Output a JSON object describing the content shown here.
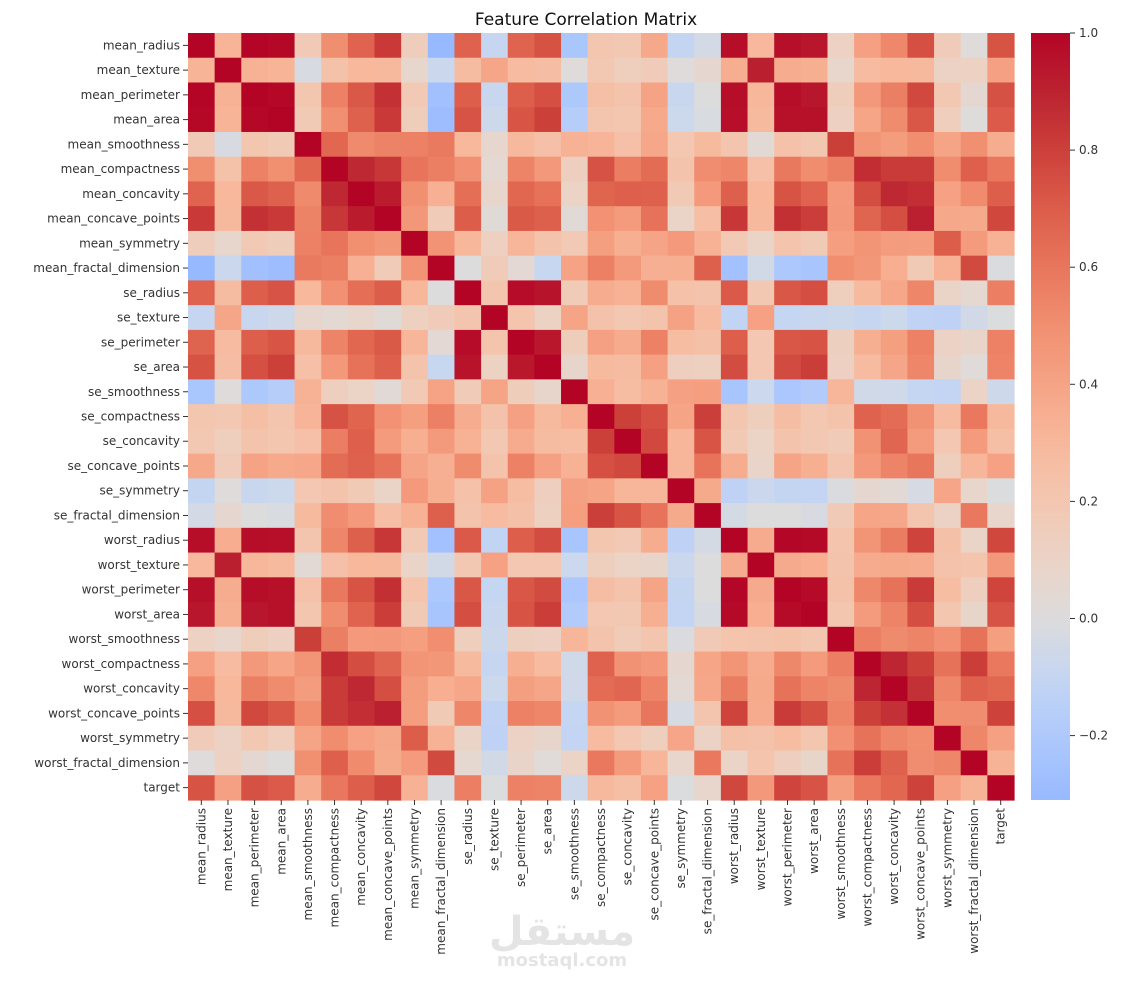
{
  "chart_data": {
    "type": "heatmap",
    "title": "Feature Correlation Matrix",
    "labels": [
      "mean_radius",
      "mean_texture",
      "mean_perimeter",
      "mean_area",
      "mean_smoothness",
      "mean_compactness",
      "mean_concavity",
      "mean_concave_points",
      "mean_symmetry",
      "mean_fractal_dimension",
      "se_radius",
      "se_texture",
      "se_perimeter",
      "se_area",
      "se_smoothness",
      "se_compactness",
      "se_concavity",
      "se_concave_points",
      "se_symmetry",
      "se_fractal_dimension",
      "worst_radius",
      "worst_texture",
      "worst_perimeter",
      "worst_area",
      "worst_smoothness",
      "worst_compactness",
      "worst_concavity",
      "worst_concave_points",
      "worst_symmetry",
      "worst_fractal_dimension",
      "target"
    ],
    "matrix": [
      [
        1,
        0.32,
        0.998,
        0.987,
        0.171,
        0.506,
        0.677,
        0.823,
        0.148,
        -0.312,
        0.679,
        -0.097,
        0.674,
        0.736,
        -0.223,
        0.206,
        0.194,
        0.376,
        -0.104,
        -0.043,
        0.97,
        0.297,
        0.965,
        0.941,
        0.12,
        0.413,
        0.527,
        0.744,
        0.164,
        0.007,
        0.73
      ],
      [
        0.32,
        1,
        0.33,
        0.321,
        -0.023,
        0.237,
        0.302,
        0.293,
        0.071,
        -0.076,
        0.276,
        0.386,
        0.282,
        0.26,
        0.007,
        0.192,
        0.143,
        0.164,
        0.009,
        0.054,
        0.353,
        0.912,
        0.358,
        0.344,
        0.078,
        0.278,
        0.301,
        0.295,
        0.105,
        0.119,
        0.415
      ],
      [
        0.998,
        0.33,
        1,
        0.987,
        0.207,
        0.557,
        0.716,
        0.851,
        0.183,
        -0.261,
        0.692,
        -0.087,
        0.693,
        0.745,
        -0.203,
        0.251,
        0.228,
        0.407,
        -0.082,
        -0.006,
        0.969,
        0.303,
        0.97,
        0.942,
        0.151,
        0.456,
        0.564,
        0.771,
        0.189,
        0.051,
        0.743
      ],
      [
        0.987,
        0.321,
        0.987,
        1,
        0.177,
        0.499,
        0.686,
        0.823,
        0.151,
        -0.283,
        0.733,
        -0.066,
        0.727,
        0.8,
        -0.167,
        0.213,
        0.208,
        0.372,
        -0.072,
        -0.02,
        0.963,
        0.287,
        0.959,
        0.959,
        0.124,
        0.391,
        0.513,
        0.722,
        0.144,
        0.004,
        0.709
      ],
      [
        0.171,
        -0.023,
        0.207,
        0.177,
        1,
        0.659,
        0.522,
        0.554,
        0.558,
        0.585,
        0.301,
        0.068,
        0.296,
        0.246,
        0.332,
        0.319,
        0.248,
        0.381,
        0.201,
        0.284,
        0.213,
        0.036,
        0.239,
        0.207,
        0.805,
        0.473,
        0.435,
        0.503,
        0.394,
        0.499,
        0.359
      ],
      [
        0.506,
        0.237,
        0.557,
        0.499,
        0.659,
        1,
        0.883,
        0.831,
        0.603,
        0.565,
        0.497,
        0.046,
        0.549,
        0.456,
        0.135,
        0.739,
        0.571,
        0.642,
        0.23,
        0.507,
        0.535,
        0.248,
        0.59,
        0.51,
        0.566,
        0.866,
        0.816,
        0.816,
        0.51,
        0.687,
        0.597
      ],
      [
        0.677,
        0.302,
        0.716,
        0.686,
        0.522,
        0.883,
        1,
        0.921,
        0.501,
        0.337,
        0.632,
        0.076,
        0.66,
        0.617,
        0.099,
        0.67,
        0.691,
        0.683,
        0.178,
        0.449,
        0.688,
        0.3,
        0.73,
        0.676,
        0.449,
        0.755,
        0.884,
        0.861,
        0.409,
        0.515,
        0.696
      ],
      [
        0.823,
        0.293,
        0.851,
        0.823,
        0.554,
        0.831,
        0.921,
        1,
        0.462,
        0.167,
        0.698,
        0.021,
        0.711,
        0.69,
        0.028,
        0.49,
        0.439,
        0.616,
        0.095,
        0.258,
        0.83,
        0.293,
        0.856,
        0.81,
        0.453,
        0.667,
        0.752,
        0.91,
        0.376,
        0.369,
        0.777
      ],
      [
        0.148,
        0.071,
        0.183,
        0.151,
        0.558,
        0.603,
        0.501,
        0.462,
        1,
        0.48,
        0.303,
        0.128,
        0.314,
        0.224,
        0.187,
        0.422,
        0.343,
        0.393,
        0.449,
        0.332,
        0.186,
        0.091,
        0.219,
        0.177,
        0.427,
        0.473,
        0.434,
        0.43,
        0.7,
        0.438,
        0.33
      ],
      [
        -0.312,
        -0.076,
        -0.261,
        -0.283,
        0.585,
        0.565,
        0.337,
        0.167,
        0.48,
        1,
        0.0,
        0.164,
        0.04,
        -0.09,
        0.402,
        0.56,
        0.447,
        0.341,
        0.345,
        0.688,
        -0.254,
        -0.051,
        -0.205,
        -0.232,
        0.505,
        0.459,
        0.346,
        0.175,
        0.334,
        0.767,
        -0.013
      ],
      [
        0.679,
        0.276,
        0.692,
        0.733,
        0.301,
        0.497,
        0.632,
        0.698,
        0.303,
        0.0,
        1,
        0.213,
        0.973,
        0.952,
        0.165,
        0.356,
        0.332,
        0.514,
        0.241,
        0.228,
        0.715,
        0.195,
        0.72,
        0.752,
        0.142,
        0.287,
        0.381,
        0.531,
        0.095,
        0.05,
        0.567
      ],
      [
        -0.097,
        0.386,
        -0.087,
        -0.066,
        0.068,
        0.046,
        0.076,
        0.021,
        0.128,
        0.164,
        0.213,
        1,
        0.223,
        0.112,
        0.397,
        0.232,
        0.195,
        0.23,
        0.412,
        0.28,
        -0.112,
        0.409,
        -0.102,
        -0.083,
        -0.074,
        -0.092,
        -0.069,
        -0.12,
        -0.128,
        -0.046,
        -0.008
      ],
      [
        0.674,
        0.282,
        0.693,
        0.727,
        0.296,
        0.549,
        0.66,
        0.711,
        0.314,
        0.04,
        0.973,
        0.223,
        1,
        0.938,
        0.151,
        0.416,
        0.362,
        0.556,
        0.266,
        0.244,
        0.697,
        0.2,
        0.721,
        0.731,
        0.13,
        0.342,
        0.419,
        0.555,
        0.11,
        0.085,
        0.556
      ],
      [
        0.736,
        0.26,
        0.745,
        0.8,
        0.246,
        0.456,
        0.617,
        0.69,
        0.224,
        -0.09,
        0.952,
        0.112,
        0.938,
        1,
        0.075,
        0.285,
        0.271,
        0.416,
        0.134,
        0.127,
        0.757,
        0.196,
        0.761,
        0.811,
        0.125,
        0.283,
        0.385,
        0.538,
        0.074,
        0.018,
        0.548
      ],
      [
        -0.223,
        0.007,
        -0.203,
        -0.167,
        0.332,
        0.135,
        0.099,
        0.028,
        0.187,
        0.402,
        0.165,
        0.397,
        0.151,
        0.075,
        1,
        0.337,
        0.269,
        0.329,
        0.414,
        0.427,
        -0.231,
        -0.075,
        -0.217,
        -0.182,
        0.314,
        -0.056,
        -0.058,
        -0.102,
        -0.107,
        0.101,
        -0.067
      ],
      [
        0.206,
        0.192,
        0.251,
        0.213,
        0.319,
        0.739,
        0.67,
        0.49,
        0.422,
        0.56,
        0.356,
        0.232,
        0.416,
        0.285,
        0.337,
        1,
        0.801,
        0.744,
        0.395,
        0.803,
        0.205,
        0.143,
        0.261,
        0.199,
        0.227,
        0.679,
        0.639,
        0.483,
        0.278,
        0.591,
        0.293
      ],
      [
        0.194,
        0.143,
        0.228,
        0.208,
        0.248,
        0.571,
        0.691,
        0.439,
        0.343,
        0.447,
        0.332,
        0.195,
        0.362,
        0.271,
        0.269,
        0.801,
        1,
        0.772,
        0.309,
        0.727,
        0.187,
        0.1,
        0.227,
        0.189,
        0.168,
        0.485,
        0.663,
        0.44,
        0.198,
        0.439,
        0.254
      ],
      [
        0.376,
        0.164,
        0.407,
        0.372,
        0.381,
        0.642,
        0.683,
        0.616,
        0.393,
        0.341,
        0.514,
        0.23,
        0.556,
        0.416,
        0.329,
        0.744,
        0.772,
        1,
        0.313,
        0.611,
        0.358,
        0.087,
        0.395,
        0.342,
        0.215,
        0.453,
        0.55,
        0.602,
        0.143,
        0.311,
        0.408
      ],
      [
        -0.104,
        0.009,
        -0.082,
        -0.072,
        0.201,
        0.23,
        0.178,
        0.095,
        0.449,
        0.345,
        0.241,
        0.412,
        0.266,
        0.134,
        0.414,
        0.395,
        0.309,
        0.313,
        1,
        0.369,
        -0.128,
        -0.077,
        -0.104,
        -0.11,
        -0.013,
        0.06,
        0.037,
        -0.03,
        0.389,
        0.078,
        -0.007
      ],
      [
        -0.043,
        0.054,
        -0.006,
        -0.02,
        0.284,
        0.507,
        0.449,
        0.258,
        0.332,
        0.688,
        0.228,
        0.28,
        0.244,
        0.127,
        0.427,
        0.803,
        0.727,
        0.611,
        0.369,
        1,
        -0.037,
        -0.003,
        -0.001,
        -0.023,
        0.171,
        0.39,
        0.38,
        0.215,
        0.111,
        0.591,
        0.078
      ],
      [
        0.97,
        0.353,
        0.969,
        0.963,
        0.213,
        0.535,
        0.688,
        0.83,
        0.186,
        -0.254,
        0.715,
        -0.112,
        0.697,
        0.757,
        -0.231,
        0.205,
        0.187,
        0.358,
        -0.128,
        -0.037,
        1,
        0.36,
        0.994,
        0.984,
        0.217,
        0.476,
        0.574,
        0.787,
        0.244,
        0.093,
        0.776
      ],
      [
        0.297,
        0.912,
        0.303,
        0.287,
        0.036,
        0.248,
        0.3,
        0.293,
        0.091,
        -0.051,
        0.195,
        0.409,
        0.2,
        0.196,
        -0.075,
        0.143,
        0.1,
        0.087,
        -0.077,
        -0.003,
        0.36,
        1,
        0.365,
        0.346,
        0.225,
        0.361,
        0.368,
        0.36,
        0.233,
        0.219,
        0.457
      ],
      [
        0.965,
        0.358,
        0.97,
        0.959,
        0.239,
        0.59,
        0.73,
        0.856,
        0.219,
        -0.205,
        0.72,
        -0.102,
        0.721,
        0.761,
        -0.217,
        0.261,
        0.227,
        0.395,
        -0.104,
        -0.001,
        0.994,
        0.365,
        1,
        0.978,
        0.237,
        0.529,
        0.618,
        0.816,
        0.269,
        0.139,
        0.783
      ],
      [
        0.941,
        0.344,
        0.942,
        0.959,
        0.207,
        0.51,
        0.676,
        0.81,
        0.177,
        -0.232,
        0.752,
        -0.083,
        0.731,
        0.811,
        -0.182,
        0.199,
        0.189,
        0.342,
        -0.11,
        -0.023,
        0.984,
        0.346,
        0.978,
        1,
        0.209,
        0.438,
        0.543,
        0.747,
        0.209,
        0.08,
        0.734
      ],
      [
        0.12,
        0.078,
        0.151,
        0.124,
        0.805,
        0.566,
        0.449,
        0.453,
        0.427,
        0.505,
        0.142,
        -0.074,
        0.13,
        0.125,
        0.314,
        0.227,
        0.168,
        0.215,
        -0.013,
        0.171,
        0.217,
        0.225,
        0.237,
        0.209,
        1,
        0.568,
        0.518,
        0.548,
        0.494,
        0.618,
        0.421
      ],
      [
        0.413,
        0.278,
        0.456,
        0.391,
        0.473,
        0.866,
        0.755,
        0.667,
        0.473,
        0.459,
        0.287,
        -0.092,
        0.342,
        0.283,
        -0.056,
        0.679,
        0.485,
        0.453,
        0.06,
        0.39,
        0.476,
        0.361,
        0.529,
        0.438,
        0.568,
        1,
        0.892,
        0.801,
        0.614,
        0.81,
        0.591
      ],
      [
        0.527,
        0.301,
        0.564,
        0.513,
        0.435,
        0.816,
        0.884,
        0.752,
        0.434,
        0.346,
        0.381,
        -0.069,
        0.419,
        0.385,
        -0.058,
        0.639,
        0.663,
        0.55,
        0.037,
        0.38,
        0.574,
        0.368,
        0.618,
        0.543,
        0.518,
        0.892,
        1,
        0.855,
        0.533,
        0.686,
        0.66
      ],
      [
        0.744,
        0.295,
        0.771,
        0.722,
        0.503,
        0.816,
        0.861,
        0.91,
        0.43,
        0.175,
        0.531,
        -0.12,
        0.555,
        0.538,
        -0.102,
        0.483,
        0.44,
        0.602,
        -0.03,
        0.215,
        0.787,
        0.36,
        0.816,
        0.747,
        0.548,
        0.801,
        0.855,
        1,
        0.503,
        0.511,
        0.794
      ],
      [
        0.164,
        0.105,
        0.189,
        0.144,
        0.394,
        0.51,
        0.409,
        0.376,
        0.7,
        0.334,
        0.095,
        -0.128,
        0.11,
        0.074,
        -0.107,
        0.278,
        0.198,
        0.143,
        0.389,
        0.111,
        0.244,
        0.233,
        0.269,
        0.209,
        0.494,
        0.614,
        0.533,
        0.503,
        1,
        0.538,
        0.416
      ],
      [
        0.007,
        0.119,
        0.051,
        0.004,
        0.499,
        0.687,
        0.515,
        0.369,
        0.438,
        0.767,
        0.05,
        -0.046,
        0.085,
        0.018,
        0.101,
        0.591,
        0.439,
        0.311,
        0.078,
        0.591,
        0.093,
        0.219,
        0.139,
        0.08,
        0.618,
        0.81,
        0.686,
        0.511,
        0.538,
        1,
        0.324
      ],
      [
        0.73,
        0.415,
        0.743,
        0.709,
        0.359,
        0.597,
        0.696,
        0.777,
        0.33,
        -0.013,
        0.567,
        -0.008,
        0.556,
        0.548,
        -0.067,
        0.293,
        0.254,
        0.408,
        -0.007,
        0.078,
        0.776,
        0.457,
        0.783,
        0.734,
        0.421,
        0.591,
        0.66,
        0.794,
        0.416,
        0.324,
        1
      ]
    ],
    "colormap": "coolwarm",
    "center": 0,
    "vmin": -0.31,
    "vmax": 1.0,
    "colorbar_ticks": [
      "1.0",
      "0.8",
      "0.6",
      "0.4",
      "0.2",
      "0.0",
      "−0.2"
    ],
    "colorbar_tick_values": [
      1.0,
      0.8,
      0.6,
      0.4,
      0.2,
      0.0,
      -0.2
    ]
  },
  "watermark": {
    "arabic": "مستقل",
    "latin": "mostaql.com"
  }
}
